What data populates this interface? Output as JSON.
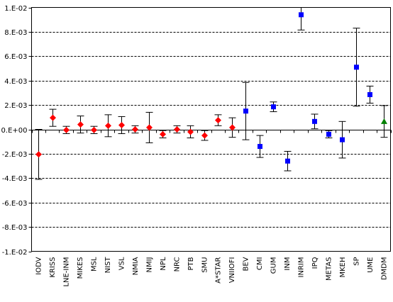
{
  "chart_data": {
    "type": "scatter",
    "x_type": "category",
    "title": "",
    "xlabel": "",
    "ylabel": "",
    "ylim": [
      -0.01,
      0.01
    ],
    "yticks": [
      {
        "value": 0.01,
        "label": "1.E-02"
      },
      {
        "value": 0.008,
        "label": "8.E-03"
      },
      {
        "value": 0.006,
        "label": "6.E-03"
      },
      {
        "value": 0.004,
        "label": "4.E-03"
      },
      {
        "value": 0.002,
        "label": "2.E-03"
      },
      {
        "value": 0.0,
        "label": "0.E+00"
      },
      {
        "value": -0.002,
        "label": "-2.E-03"
      },
      {
        "value": -0.004,
        "label": "-4.E-03"
      },
      {
        "value": -0.006,
        "label": "-6.E-03"
      },
      {
        "value": -0.008,
        "label": "-8.E-03"
      },
      {
        "value": -0.01,
        "label": "-1.E-02"
      }
    ],
    "grid": "horizontal-dashed",
    "legend": "none",
    "series": [
      {
        "marker": "diamond",
        "color": "#ff0000",
        "points": [
          {
            "x": "IODV",
            "y": -0.00205,
            "err": 0.00205
          },
          {
            "x": "KRISS",
            "y": 0.00095,
            "err": 0.0007
          },
          {
            "x": "LNE-INM",
            "y": -5e-05,
            "err": 0.0003
          },
          {
            "x": "MIKES",
            "y": 0.0004,
            "err": 0.0007
          },
          {
            "x": "MSL",
            "y": -5e-05,
            "err": 0.0003
          },
          {
            "x": "NIST",
            "y": 0.0003,
            "err": 0.0009
          },
          {
            "x": "VSL",
            "y": 0.00035,
            "err": 0.0007
          },
          {
            "x": "NMIA",
            "y": 0.0,
            "err": 0.0003
          },
          {
            "x": "NMIJ",
            "y": 0.00015,
            "err": 0.00125
          },
          {
            "x": "NPL",
            "y": -0.0004,
            "err": 0.0003
          },
          {
            "x": "NRC",
            "y": 0.0,
            "err": 0.0003
          },
          {
            "x": "PTB",
            "y": -0.0002,
            "err": 0.0005
          },
          {
            "x": "SMU",
            "y": -0.0005,
            "err": 0.0004
          },
          {
            "x": "A*STAR",
            "y": 0.00075,
            "err": 0.00045
          },
          {
            "x": "VNIIOFI",
            "y": 0.00015,
            "err": 0.0008
          }
        ]
      },
      {
        "marker": "square",
        "color": "#0000ff",
        "points": [
          {
            "x": "BEV",
            "y": 0.0015,
            "err": 0.00235
          },
          {
            "x": "CMI",
            "y": -0.0014,
            "err": 0.0009
          },
          {
            "x": "GUM",
            "y": 0.00185,
            "err": 0.0004
          },
          {
            "x": "INM",
            "y": -0.0026,
            "err": 0.0008
          },
          {
            "x": "INRIM",
            "y": 0.0094,
            "err": 0.00125
          },
          {
            "x": "IPQ",
            "y": 0.00065,
            "err": 0.0006
          },
          {
            "x": "METAS",
            "y": -0.0004,
            "err": 0.0003
          },
          {
            "x": "MKEH",
            "y": -0.00085,
            "err": 0.0015
          },
          {
            "x": "SP",
            "y": 0.0051,
            "err": 0.0032
          },
          {
            "x": "UME",
            "y": 0.00285,
            "err": 0.0007
          }
        ]
      },
      {
        "marker": "triangle",
        "color": "#008000",
        "points": [
          {
            "x": "DMDM",
            "y": 0.00065,
            "err": 0.0013
          }
        ]
      }
    ],
    "categories": [
      "IODV",
      "KRISS",
      "LNE-INM",
      "MIKES",
      "MSL",
      "NIST",
      "VSL",
      "NMIA",
      "NMIJ",
      "NPL",
      "NRC",
      "PTB",
      "SMU",
      "A*STAR",
      "VNIIOFI",
      "BEV",
      "CMI",
      "GUM",
      "INM",
      "INRIM",
      "IPQ",
      "METAS",
      "MKEH",
      "SP",
      "UME",
      "DMDM"
    ]
  }
}
